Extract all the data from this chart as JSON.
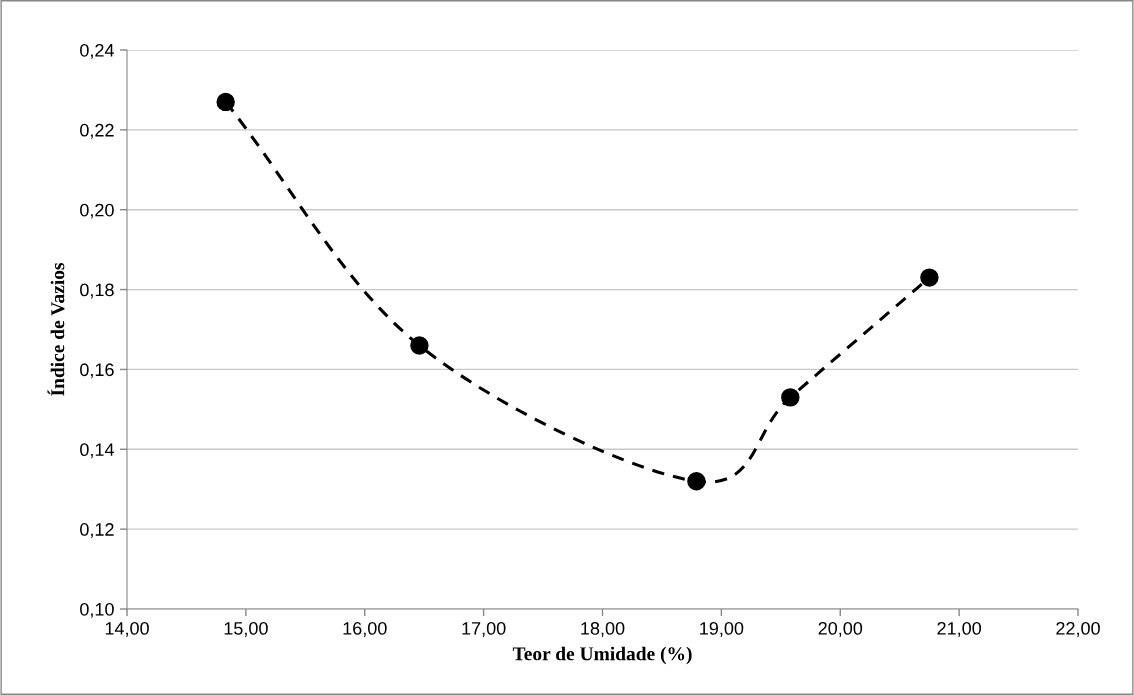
{
  "chart_data": {
    "type": "line",
    "xlabel": "Teor de Umidade (%)",
    "ylabel": "Índice de Vazios",
    "x": [
      14.83,
      16.46,
      18.79,
      19.58,
      20.75
    ],
    "series": [
      {
        "color": "#000000",
        "values": [
          0.227,
          0.166,
          0.132,
          0.153,
          0.183
        ]
      }
    ],
    "marker": "circle",
    "line_style": "dashed",
    "grid": "y",
    "xlim": [
      14,
      22
    ],
    "ylim": [
      0.1,
      0.24
    ],
    "xticks": [
      {
        "value": 14,
        "label": "14,00"
      },
      {
        "value": 15,
        "label": "15,00"
      },
      {
        "value": 16,
        "label": "16,00"
      },
      {
        "value": 17,
        "label": "17,00"
      },
      {
        "value": 18,
        "label": "18,00"
      },
      {
        "value": 19,
        "label": "19,00"
      },
      {
        "value": 20,
        "label": "20,00"
      },
      {
        "value": 21,
        "label": "21,00"
      },
      {
        "value": 22,
        "label": "22,00"
      }
    ],
    "yticks": [
      {
        "value": 0.1,
        "label": "0,10"
      },
      {
        "value": 0.12,
        "label": "0,12"
      },
      {
        "value": 0.14,
        "label": "0,14"
      },
      {
        "value": 0.16,
        "label": "0,16"
      },
      {
        "value": 0.18,
        "label": "0,18"
      },
      {
        "value": 0.2,
        "label": "0,20"
      },
      {
        "value": 0.22,
        "label": "0,22"
      },
      {
        "value": 0.24,
        "label": "0,24"
      }
    ]
  }
}
